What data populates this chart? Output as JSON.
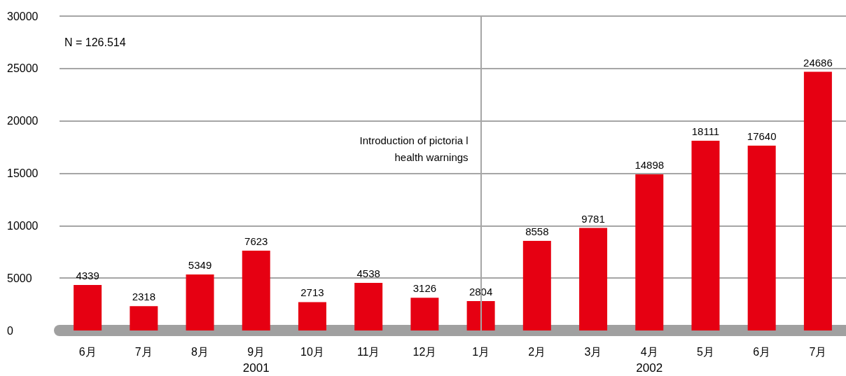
{
  "chart_data": {
    "type": "bar",
    "categories": [
      "6月",
      "7月",
      "8月",
      "9月",
      "10月",
      "11月",
      "12月",
      "1月",
      "2月",
      "3月",
      "4月",
      "5月",
      "6月",
      "7月"
    ],
    "values": [
      4339,
      2318,
      5349,
      7623,
      2713,
      4538,
      3126,
      2804,
      8558,
      9781,
      14898,
      18111,
      17640,
      24686
    ],
    "color": "#e60012",
    "data_labels": true,
    "ylim": [
      0,
      30000
    ],
    "yticks": [
      0,
      5000,
      10000,
      15000,
      20000,
      25000,
      30000
    ],
    "grid": "y",
    "ref_lines": [
      {
        "axis": "x",
        "value": "1月",
        "label": "Introduction of pictoria l\nhealth warnings",
        "color": "#a6a6a6"
      }
    ],
    "annotations": [
      "N = 126.514",
      "2001",
      "2002"
    ]
  }
}
